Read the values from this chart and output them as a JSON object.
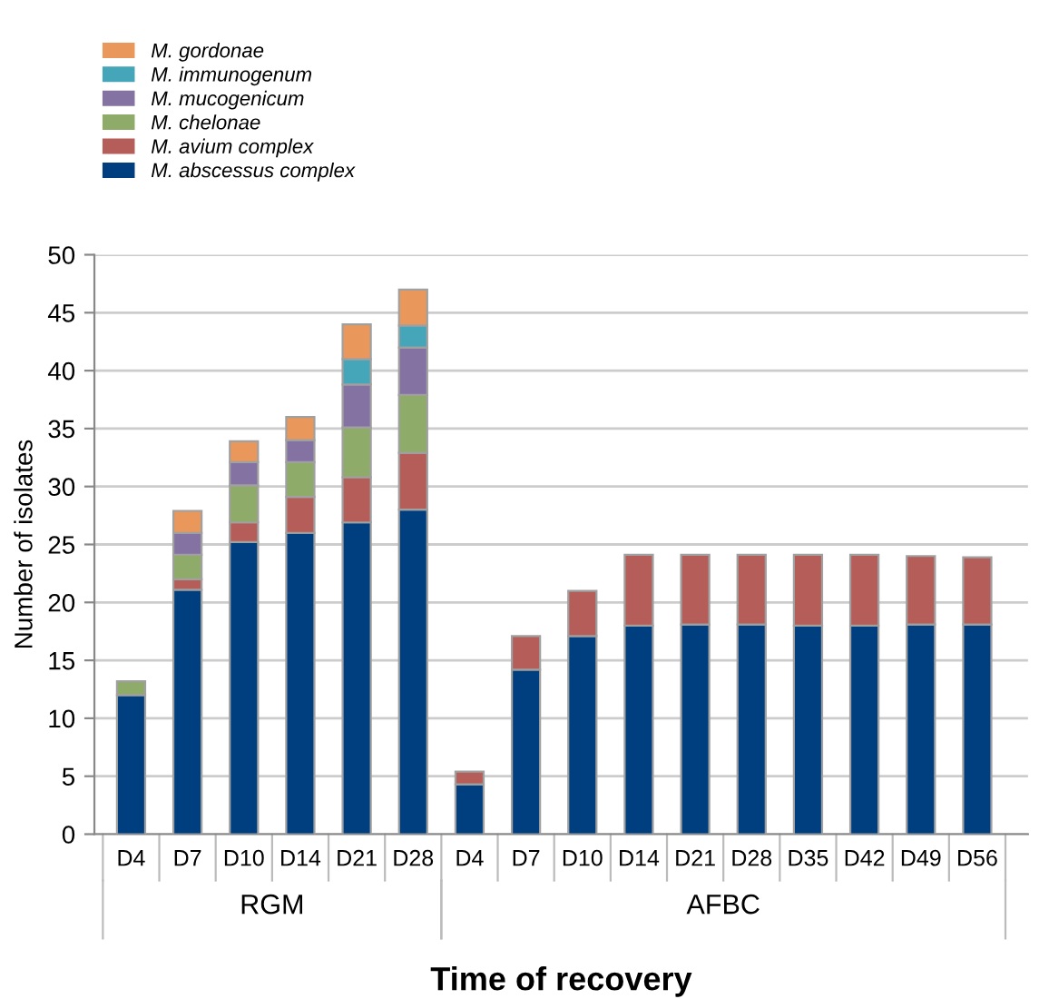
{
  "chart_data": {
    "type": "bar",
    "stacked": true,
    "categories": [
      "D4",
      "D7",
      "D10",
      "D14",
      "D21",
      "D28",
      "D4",
      "D7",
      "D10",
      "D14",
      "D21",
      "D28",
      "D35",
      "D42",
      "D49",
      "D56"
    ],
    "series": [
      {
        "name": "M. abscessus complex",
        "color": "#003f7f",
        "values": [
          12,
          21.1,
          25.2,
          26,
          26.9,
          28,
          4.3,
          14.2,
          17.1,
          18,
          18.1,
          18.1,
          18,
          18,
          18.1,
          18.1
        ]
      },
      {
        "name": "M. avium complex",
        "color": "#b55d58",
        "values": [
          null,
          0.9,
          1.7,
          3.1,
          3.9,
          4.9,
          1.1,
          2.9,
          3.9,
          6.1,
          6,
          6,
          6.1,
          6.1,
          5.9,
          5.8
        ]
      },
      {
        "name": "M. chelonae",
        "color": "#8fab6a",
        "values": [
          1.2,
          2.1,
          3.2,
          3,
          4.3,
          5,
          null,
          null,
          null,
          null,
          null,
          null,
          null,
          null,
          null,
          null
        ]
      },
      {
        "name": "M. mucogenicum",
        "color": "#8472a3",
        "values": [
          null,
          1.9,
          2,
          1.9,
          3.7,
          4.1,
          null,
          null,
          null,
          null,
          null,
          null,
          null,
          null,
          null,
          null
        ]
      },
      {
        "name": "M. immunogenum",
        "color": "#44a6b8",
        "values": [
          null,
          null,
          null,
          null,
          2.2,
          1.9,
          null,
          null,
          null,
          null,
          null,
          null,
          null,
          null,
          null,
          null
        ]
      },
      {
        "name": "M. gordonae",
        "color": "#e9975a",
        "values": [
          null,
          1.9,
          1.8,
          2,
          3,
          3.1,
          null,
          null,
          null,
          null,
          null,
          null,
          null,
          null,
          null,
          null
        ]
      }
    ],
    "ylim": [
      0,
      50
    ],
    "yticks": [
      0,
      5,
      10,
      15,
      20,
      25,
      30,
      35,
      40,
      45,
      50
    ],
    "ylabel": "Number of isolates",
    "xlabel": "Time of recovery",
    "annotations": [
      "RGM",
      "AFBC"
    ],
    "grid": "y",
    "legend": "top left"
  }
}
